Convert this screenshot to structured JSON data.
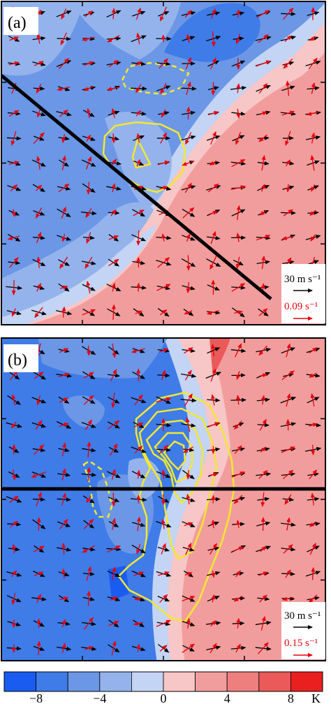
{
  "panels": [
    {
      "id": "a",
      "label": "(a)",
      "ref_vectors": [
        {
          "text": "30 m s⁻¹",
          "color": "#000000"
        },
        {
          "text": "0.09 s⁻¹",
          "color": "#e8000b"
        }
      ]
    },
    {
      "id": "b",
      "label": "(b)",
      "ref_vectors": [
        {
          "text": "30 m s⁻¹",
          "color": "#000000"
        },
        {
          "text": "0.15 s⁻¹",
          "color": "#e8000b"
        }
      ]
    }
  ],
  "colorbar": {
    "colors": [
      "#1a5cf0",
      "#3f7ce8",
      "#6b97e6",
      "#94b3ec",
      "#c3d4f4",
      "#f7c6c6",
      "#f29d9d",
      "#ee7f7f",
      "#ea5a5a",
      "#ea2020"
    ],
    "tick_labels": [
      "−8",
      "−4",
      "0",
      "4",
      "8"
    ],
    "unit": "K"
  },
  "colors": {
    "contour": "#f2e830",
    "wind_vector": "#000000",
    "vorticity_vector": "#e8000b",
    "section_line": "#000000"
  }
}
